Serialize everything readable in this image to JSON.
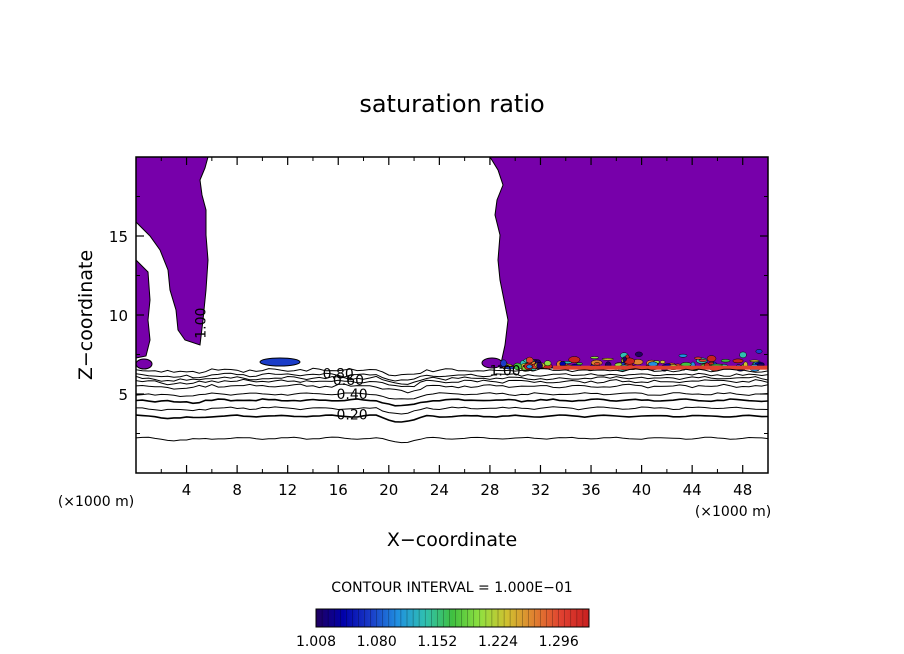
{
  "chart_data": {
    "type": "heatmap",
    "title": "saturation ratio",
    "xlabel": "X−coordinate",
    "ylabel": "Z−coordinate",
    "x_unit_label": "(×1000 m)",
    "z_unit_label": "(×1000 m)",
    "xlim": [
      0,
      50
    ],
    "ylim": [
      0,
      20
    ],
    "x_ticks": [
      4,
      8,
      12,
      16,
      20,
      24,
      28,
      32,
      36,
      40,
      44,
      48
    ],
    "y_ticks": [
      5,
      10,
      15
    ],
    "contour_interval_text": "CONTOUR INTERVAL = 1.000E−01",
    "contour_levels": [
      {
        "value": 0.1,
        "z": 2.2
      },
      {
        "value": 0.2,
        "z": 3.6
      },
      {
        "value": 0.3,
        "z": 4.1
      },
      {
        "value": 0.4,
        "z": 4.6
      },
      {
        "value": 0.5,
        "z": 5.0
      },
      {
        "value": 0.6,
        "z": 5.5
      },
      {
        "value": 0.7,
        "z": 5.8
      },
      {
        "value": 0.8,
        "z": 6.0
      },
      {
        "value": 0.9,
        "z": 6.2
      },
      {
        "value": 1.0,
        "z": 6.5
      }
    ],
    "contour_labels": [
      {
        "text": "0.80",
        "x": 16.0,
        "z": 6.3
      },
      {
        "text": "0.60",
        "x": 16.8,
        "z": 5.9
      },
      {
        "text": "0.40",
        "x": 17.1,
        "z": 5.0
      },
      {
        "text": "0.20",
        "x": 17.1,
        "z": 3.7
      },
      {
        "text": "1.00",
        "x": 29.2,
        "z": 6.5
      },
      {
        "text": "1.00",
        "x": 5.5,
        "z": 9.8
      }
    ],
    "colorbar": {
      "min": 1.008,
      "max": 1.332,
      "tick_labels": [
        "1.008",
        "1.080",
        "1.152",
        "1.224",
        "1.296"
      ],
      "colors": [
        "#200060",
        "#0000aa",
        "#1a3cc8",
        "#2090e0",
        "#30c0b0",
        "#40c040",
        "#90e040",
        "#d0c030",
        "#e08030",
        "#e04030",
        "#c82020"
      ]
    },
    "fill_color": "#7700aa",
    "supersaturated_regions": [
      {
        "description_label": "",
        "x_range": [
          0,
          50
        ],
        "z_range": [
          6.5,
          20
        ]
      }
    ]
  }
}
